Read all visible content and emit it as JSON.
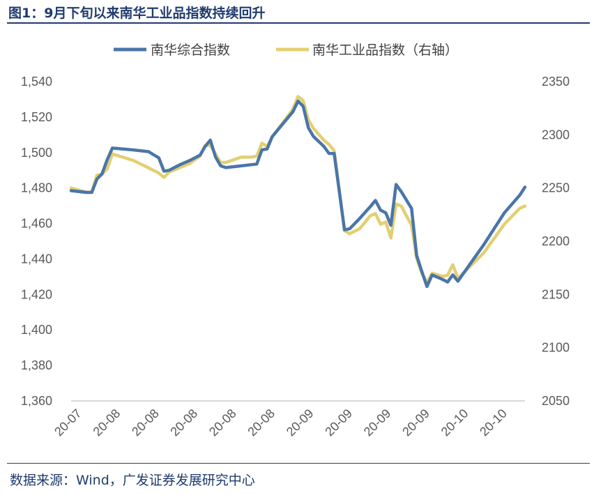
{
  "figure": {
    "title": "图1：9月下旬以来南华工业品指数持续回升",
    "source": "数据来源：Wind，广发证券发展研究中心"
  },
  "colors": {
    "series_left": "#4a76a8",
    "series_right": "#e3cf73",
    "axis": "#d9d9d9",
    "title": "#1f3b6e"
  },
  "chart_data": {
    "type": "line",
    "title": "",
    "legend_position": "top-center",
    "grid": false,
    "x_tick_labels": [
      "20-07",
      "20-08",
      "20-08",
      "20-08",
      "20-08",
      "20-08",
      "20-09",
      "20-09",
      "20-09",
      "20-09",
      "20-10",
      "20-10"
    ],
    "y_left": {
      "ylim": [
        1360,
        1540
      ],
      "ticks": [
        "1,540",
        "1,520",
        "1,500",
        "1,480",
        "1,460",
        "1,440",
        "1,420",
        "1,400",
        "1,380",
        "1,360"
      ]
    },
    "y_right": {
      "ylim": [
        2050,
        2350
      ],
      "ticks": [
        "2350",
        "2300",
        "2250",
        "2200",
        "2150",
        "2100",
        "2050"
      ]
    },
    "x_index_range": [
      0,
      70
    ],
    "series": [
      {
        "name": "南华综合指数",
        "axis": "left",
        "points": [
          [
            0,
            1478.5
          ],
          [
            3,
            1477.5
          ],
          [
            4,
            1477.5
          ],
          [
            5,
            1485
          ],
          [
            6,
            1488
          ],
          [
            7,
            1496
          ],
          [
            8,
            1502.5
          ],
          [
            12,
            1501.5
          ],
          [
            15,
            1500.5
          ],
          [
            17,
            1497
          ],
          [
            18,
            1489.5
          ],
          [
            19,
            1490
          ],
          [
            21,
            1493
          ],
          [
            23,
            1495.5
          ],
          [
            25,
            1498.5
          ],
          [
            26,
            1503.5
          ],
          [
            27,
            1507
          ],
          [
            28,
            1497.5
          ],
          [
            29,
            1492.5
          ],
          [
            30,
            1491.5
          ],
          [
            33,
            1492.5
          ],
          [
            36,
            1493.5
          ],
          [
            37,
            1501.5
          ],
          [
            38,
            1502
          ],
          [
            39,
            1509
          ],
          [
            41,
            1516
          ],
          [
            43,
            1523
          ],
          [
            44,
            1529
          ],
          [
            45,
            1526
          ],
          [
            46,
            1514
          ],
          [
            47,
            1509
          ],
          [
            49,
            1503.5
          ],
          [
            50,
            1499.5
          ],
          [
            51,
            1499.5
          ],
          [
            53,
            1456.5
          ],
          [
            54,
            1457
          ],
          [
            56,
            1463
          ],
          [
            58,
            1469.5
          ],
          [
            59,
            1473
          ],
          [
            60,
            1467.5
          ],
          [
            61,
            1466
          ],
          [
            62,
            1459
          ],
          [
            63,
            1482
          ],
          [
            64,
            1478
          ],
          [
            66,
            1468.5
          ],
          [
            67,
            1442
          ],
          [
            68,
            1433
          ],
          [
            69,
            1424.5
          ],
          [
            70,
            1431
          ],
          [
            72,
            1428.5
          ],
          [
            73,
            1427
          ],
          [
            74,
            1431
          ],
          [
            75,
            1427.5
          ],
          [
            80,
            1448
          ],
          [
            84,
            1466
          ],
          [
            87,
            1476
          ],
          [
            88,
            1480.5
          ]
        ]
      },
      {
        "name": "南华工业品指数（右轴）",
        "axis": "right",
        "points": [
          [
            0,
            2250
          ],
          [
            3,
            2246
          ],
          [
            4,
            2246
          ],
          [
            5,
            2262
          ],
          [
            6,
            2263
          ],
          [
            7,
            2268
          ],
          [
            8,
            2282
          ],
          [
            12,
            2276
          ],
          [
            15,
            2269
          ],
          [
            17,
            2264
          ],
          [
            18,
            2260
          ],
          [
            19,
            2265
          ],
          [
            21,
            2269
          ],
          [
            23,
            2273
          ],
          [
            25,
            2280
          ],
          [
            26,
            2290
          ],
          [
            27,
            2290
          ],
          [
            28,
            2282
          ],
          [
            29,
            2274
          ],
          [
            30,
            2274
          ],
          [
            33,
            2279
          ],
          [
            35,
            2279
          ],
          [
            36,
            2280
          ],
          [
            37,
            2292
          ],
          [
            38,
            2289
          ],
          [
            39,
            2298
          ],
          [
            41,
            2311
          ],
          [
            43,
            2324
          ],
          [
            44,
            2336
          ],
          [
            45,
            2332
          ],
          [
            46,
            2314
          ],
          [
            47,
            2306
          ],
          [
            49,
            2295
          ],
          [
            50,
            2291
          ],
          [
            51,
            2285
          ],
          [
            53,
            2210
          ],
          [
            54,
            2207
          ],
          [
            56,
            2212
          ],
          [
            58,
            2224
          ],
          [
            59,
            2226
          ],
          [
            60,
            2216
          ],
          [
            61,
            2218
          ],
          [
            62,
            2203
          ],
          [
            63,
            2235
          ],
          [
            64,
            2233
          ],
          [
            66,
            2215
          ],
          [
            67,
            2184
          ],
          [
            68,
            2170
          ],
          [
            69,
            2161
          ],
          [
            70,
            2170
          ],
          [
            72,
            2167
          ],
          [
            73,
            2168
          ],
          [
            74,
            2178
          ],
          [
            75,
            2165
          ],
          [
            80,
            2189
          ],
          [
            84,
            2216
          ],
          [
            87,
            2231
          ],
          [
            88,
            2233
          ]
        ]
      }
    ]
  }
}
